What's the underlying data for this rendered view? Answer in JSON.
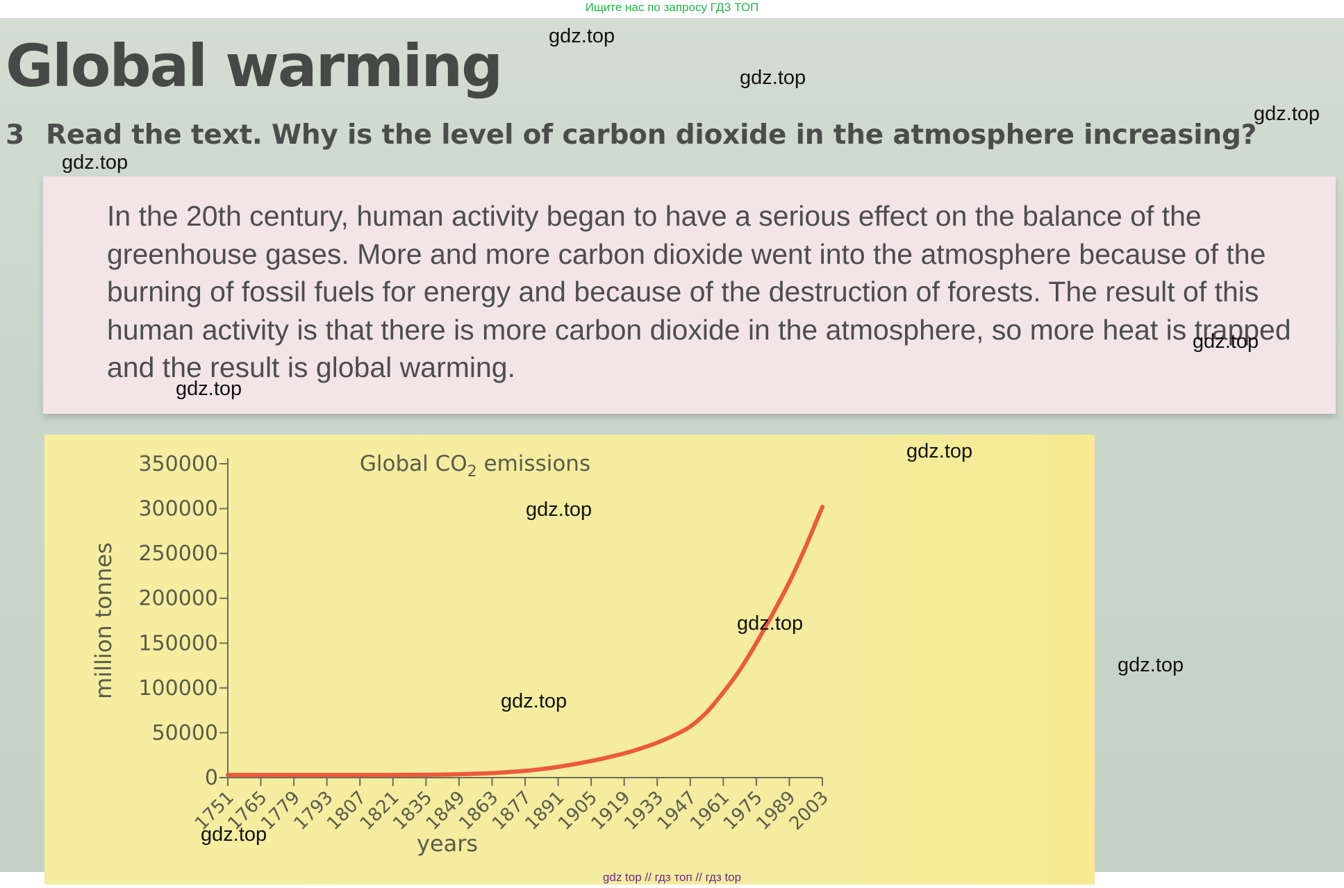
{
  "banner_top": "Ищите нас по запросу ГДЗ ТОП",
  "banner_bottom": "gdz top  //  гдз топ  //  гдз top",
  "title": "Global warming",
  "question": {
    "number": "3",
    "text": "Read the text. Why is the level of carbon dioxide in the atmosphere increasing?"
  },
  "passage": "In the 20th century, human activity began to have a serious effect on the balance of the greenhouse gases. More and more carbon dioxide went into the atmosphere because of the burning of fossil fuels for energy and because of the destruction of forests. The result of this human activity is that there is more carbon dioxide in the atmosphere, so more heat is trapped and the result is global warming.",
  "watermark": "gdz.top",
  "colors": {
    "line": "#ec5a3a",
    "panel": "#f5eea0",
    "textbox": "#f3e4e8",
    "banner_top": "#21b34a",
    "banner_bottom": "#6a2a8c"
  },
  "chart_data": {
    "type": "line",
    "title_prefix": "Global CO",
    "title_subscript": "2",
    "title_suffix": " emissions",
    "xlabel": "years",
    "ylabel": "million tonnes",
    "ylim": [
      0,
      350000
    ],
    "yticks": [
      "0",
      "50000",
      "100000",
      "150000",
      "200000",
      "250000",
      "300000",
      "350000"
    ],
    "xticks": [
      "1751",
      "1765",
      "1779",
      "1793",
      "1807",
      "1821",
      "1835",
      "1849",
      "1863",
      "1877",
      "1891",
      "1905",
      "1919",
      "1933",
      "1947",
      "1961",
      "1975",
      "1989",
      "2003"
    ],
    "grid": false,
    "series": [
      {
        "x": [
          1751,
          1765,
          1779,
          1793,
          1807,
          1821,
          1835,
          1849,
          1863,
          1870,
          1877,
          1884,
          1891,
          1898,
          1905,
          1912,
          1919,
          1926,
          1933,
          1940,
          1947,
          1954,
          1961,
          1968,
          1975,
          1982,
          1989,
          1996,
          2003
        ],
        "y": [
          3000,
          3000,
          3000,
          3000,
          3000,
          3000,
          3200,
          3800,
          5000,
          6200,
          7500,
          9500,
          12000,
          15000,
          18500,
          22500,
          27000,
          32500,
          39000,
          47000,
          57000,
          73000,
          95000,
          120000,
          150000,
          183000,
          218000,
          258000,
          302000
        ]
      }
    ]
  }
}
